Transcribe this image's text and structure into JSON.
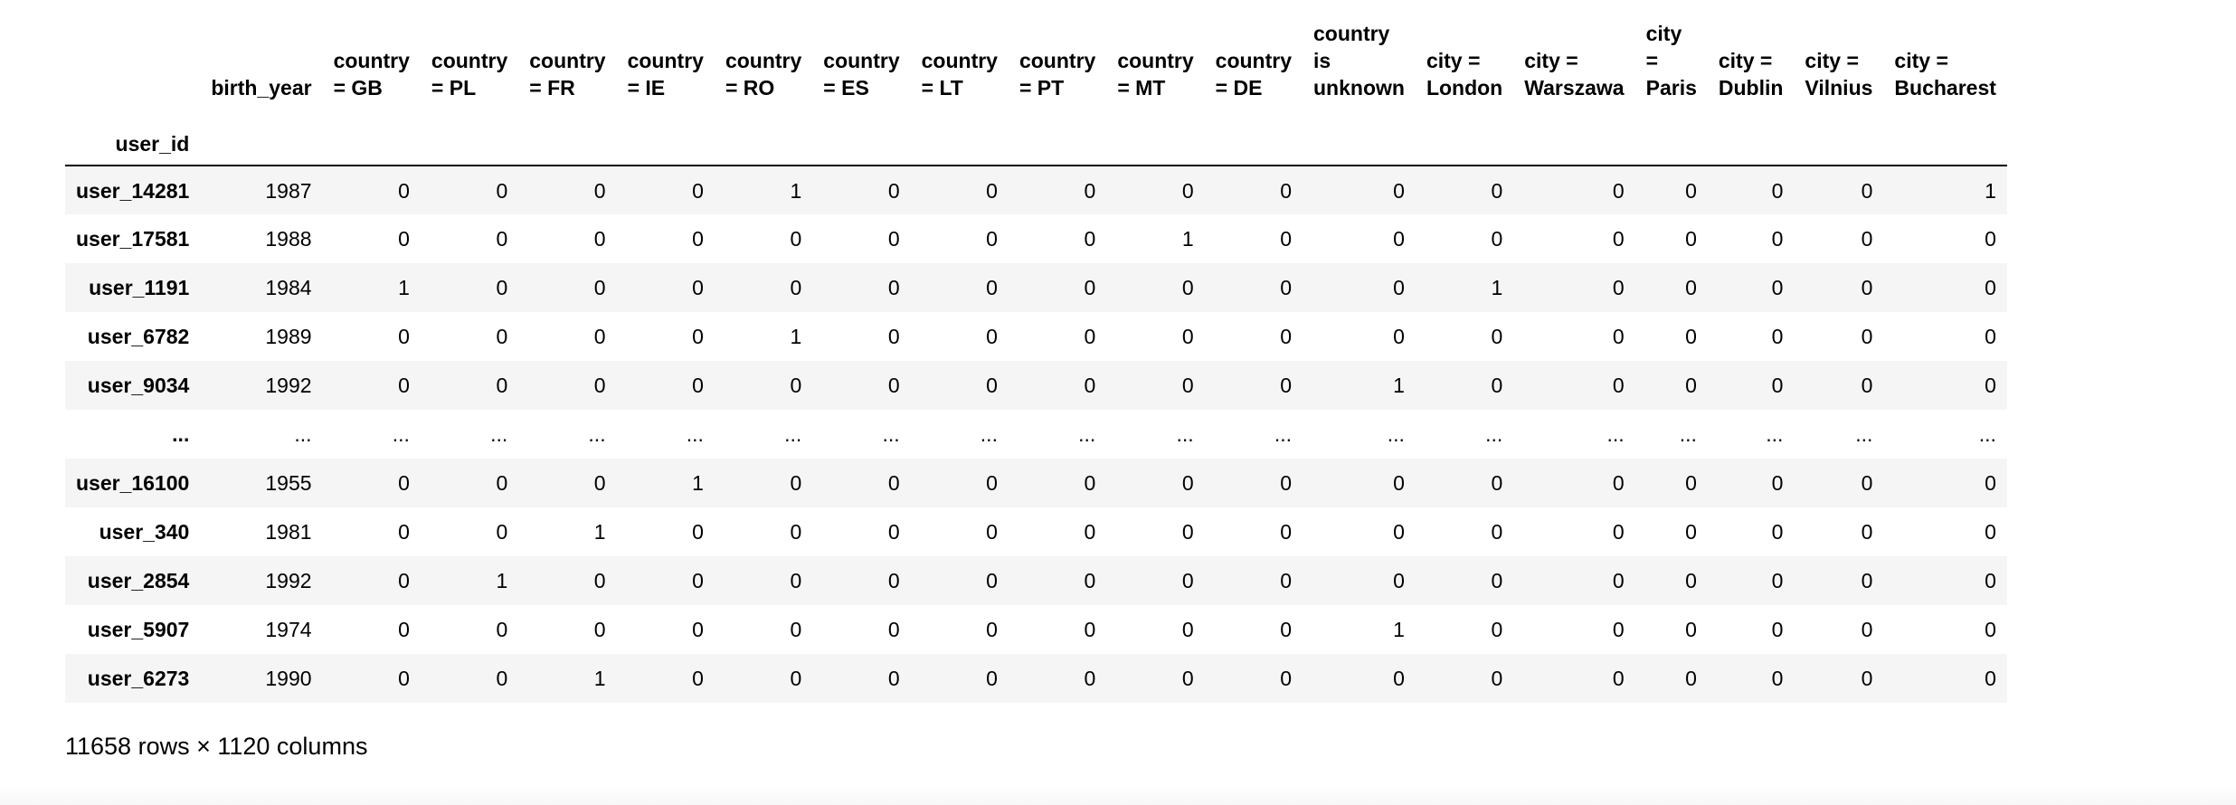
{
  "dataframe": {
    "index_name": "user_id",
    "columns": [
      [
        "birth_year"
      ],
      [
        "country",
        "= GB"
      ],
      [
        "country",
        "= PL"
      ],
      [
        "country",
        "= FR"
      ],
      [
        "country",
        "= IE"
      ],
      [
        "country",
        "= RO"
      ],
      [
        "country",
        "= ES"
      ],
      [
        "country",
        "= LT"
      ],
      [
        "country",
        "= PT"
      ],
      [
        "country",
        "= MT"
      ],
      [
        "country",
        "= DE"
      ],
      [
        "country",
        "is",
        "unknown"
      ],
      [
        "city =",
        "London"
      ],
      [
        "city =",
        "Warszawa"
      ],
      [
        "city",
        "=",
        "Paris"
      ],
      [
        "city =",
        "Dublin"
      ],
      [
        "city =",
        "Vilnius"
      ],
      [
        "city =",
        "Bucharest"
      ]
    ],
    "rows": [
      {
        "index": "user_14281",
        "values": [
          "1987",
          "0",
          "0",
          "0",
          "0",
          "1",
          "0",
          "0",
          "0",
          "0",
          "0",
          "0",
          "0",
          "0",
          "0",
          "0",
          "0",
          "1"
        ]
      },
      {
        "index": "user_17581",
        "values": [
          "1988",
          "0",
          "0",
          "0",
          "0",
          "0",
          "0",
          "0",
          "0",
          "1",
          "0",
          "0",
          "0",
          "0",
          "0",
          "0",
          "0",
          "0"
        ]
      },
      {
        "index": "user_1191",
        "values": [
          "1984",
          "1",
          "0",
          "0",
          "0",
          "0",
          "0",
          "0",
          "0",
          "0",
          "0",
          "0",
          "1",
          "0",
          "0",
          "0",
          "0",
          "0"
        ]
      },
      {
        "index": "user_6782",
        "values": [
          "1989",
          "0",
          "0",
          "0",
          "0",
          "1",
          "0",
          "0",
          "0",
          "0",
          "0",
          "0",
          "0",
          "0",
          "0",
          "0",
          "0",
          "0"
        ]
      },
      {
        "index": "user_9034",
        "values": [
          "1992",
          "0",
          "0",
          "0",
          "0",
          "0",
          "0",
          "0",
          "0",
          "0",
          "0",
          "1",
          "0",
          "0",
          "0",
          "0",
          "0",
          "0"
        ]
      },
      {
        "index": "...",
        "values": [
          "...",
          "...",
          "...",
          "...",
          "...",
          "...",
          "...",
          "...",
          "...",
          "...",
          "...",
          "...",
          "...",
          "...",
          "...",
          "...",
          "...",
          "..."
        ]
      },
      {
        "index": "user_16100",
        "values": [
          "1955",
          "0",
          "0",
          "0",
          "1",
          "0",
          "0",
          "0",
          "0",
          "0",
          "0",
          "0",
          "0",
          "0",
          "0",
          "0",
          "0",
          "0"
        ]
      },
      {
        "index": "user_340",
        "values": [
          "1981",
          "0",
          "0",
          "1",
          "0",
          "0",
          "0",
          "0",
          "0",
          "0",
          "0",
          "0",
          "0",
          "0",
          "0",
          "0",
          "0",
          "0"
        ]
      },
      {
        "index": "user_2854",
        "values": [
          "1992",
          "0",
          "1",
          "0",
          "0",
          "0",
          "0",
          "0",
          "0",
          "0",
          "0",
          "0",
          "0",
          "0",
          "0",
          "0",
          "0",
          "0"
        ]
      },
      {
        "index": "user_5907",
        "values": [
          "1974",
          "0",
          "0",
          "0",
          "0",
          "0",
          "0",
          "0",
          "0",
          "0",
          "0",
          "1",
          "0",
          "0",
          "0",
          "0",
          "0",
          "0"
        ]
      },
      {
        "index": "user_6273",
        "values": [
          "1990",
          "0",
          "0",
          "1",
          "0",
          "0",
          "0",
          "0",
          "0",
          "0",
          "0",
          "0",
          "0",
          "0",
          "0",
          "0",
          "0",
          "0"
        ]
      }
    ],
    "shape_caption": "11658 rows × 1120 columns"
  },
  "colors": {
    "stripe": "#f5f5f5",
    "text": "#000000",
    "header_rule": "#000000"
  }
}
